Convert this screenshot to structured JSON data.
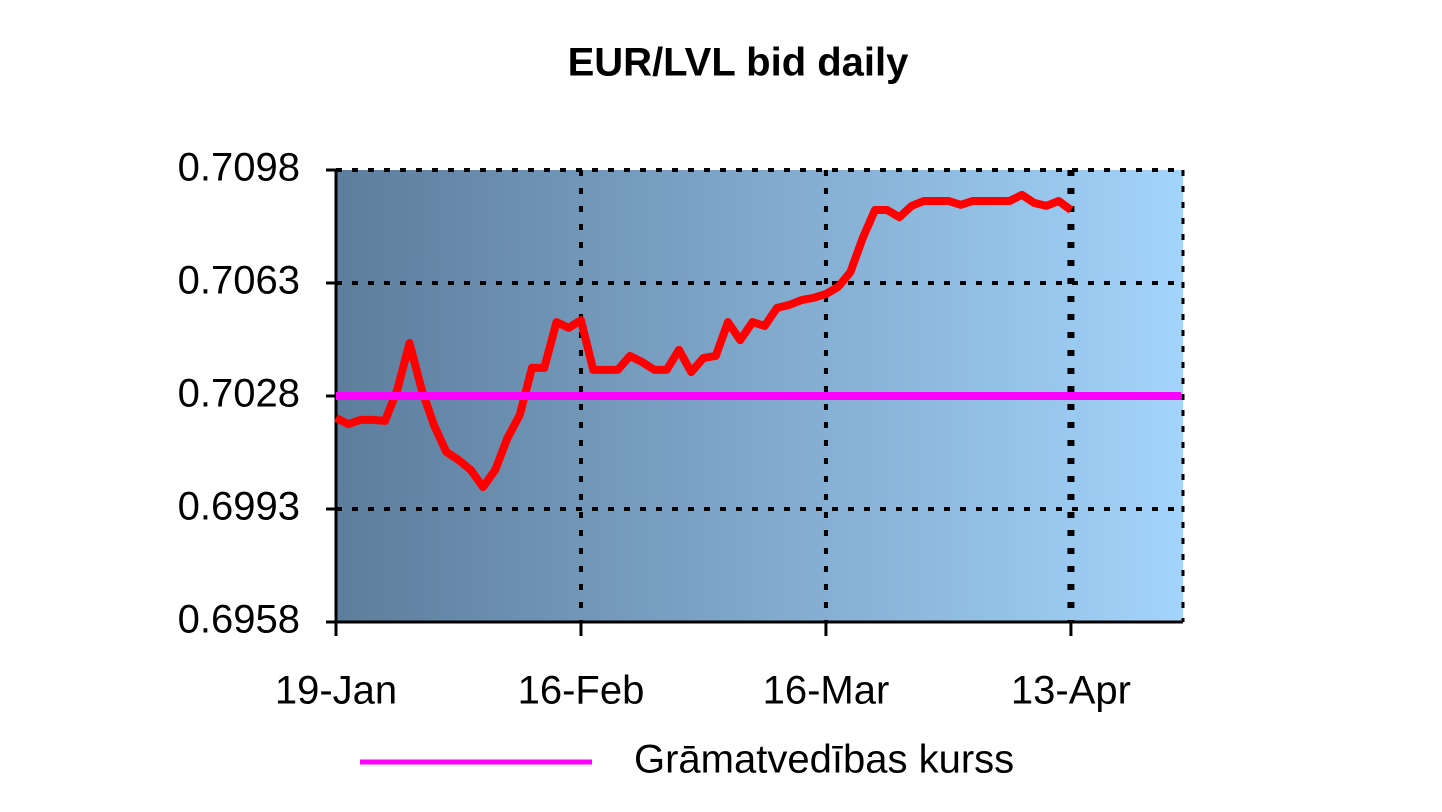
{
  "chart_data": {
    "type": "line",
    "title": "EUR/LVL bid daily",
    "categories": [
      "19-Jan",
      null,
      null,
      null,
      null,
      null,
      null,
      null,
      null,
      null,
      null,
      null,
      null,
      null,
      null,
      null,
      null,
      null,
      null,
      null,
      "16-Feb",
      null,
      null,
      null,
      null,
      null,
      null,
      null,
      null,
      null,
      null,
      null,
      null,
      null,
      null,
      null,
      null,
      null,
      null,
      null,
      "16-Mar",
      null,
      null,
      null,
      null,
      null,
      null,
      null,
      null,
      null,
      null,
      null,
      null,
      null,
      null,
      null,
      null,
      null,
      null,
      null,
      "13-Apr",
      null,
      null,
      null,
      null,
      null,
      null,
      null,
      null,
      null
    ],
    "series": [
      {
        "color": "#ff0000",
        "values": [
          0.70212,
          0.70193,
          0.70206,
          0.70206,
          0.70203,
          0.70299,
          0.70444,
          0.70299,
          0.7019,
          0.70107,
          0.70082,
          0.70051,
          0.69998,
          0.70051,
          0.7015,
          0.70221,
          0.70367,
          0.70367,
          0.70509,
          0.70491,
          0.70515,
          0.70361,
          0.70361,
          0.70361,
          0.70404,
          0.70385,
          0.70361,
          0.70361,
          0.70423,
          0.70354,
          0.70398,
          0.70404,
          0.70509,
          0.70453,
          0.70509,
          0.70497,
          0.70553,
          0.70562,
          0.70577,
          0.70584,
          0.70596,
          0.70618,
          0.70664,
          0.70769,
          0.70856,
          0.70856,
          0.70834,
          0.70869,
          0.70884,
          0.70884,
          0.70884,
          0.70872,
          0.70884,
          0.70884,
          0.70884,
          0.70884,
          0.70903,
          0.70878,
          0.70869,
          0.70884,
          0.70856,
          null,
          null,
          null,
          null,
          null,
          null,
          null,
          null,
          null
        ]
      },
      {
        "name": "Grāmatvedības kurss",
        "color": "#ff00ff",
        "values": [
          0.7028,
          0.7028,
          0.7028,
          0.7028,
          0.7028,
          0.7028,
          0.7028,
          0.7028,
          0.7028,
          0.7028,
          0.7028,
          0.7028,
          0.7028,
          0.7028,
          0.7028,
          0.7028,
          0.7028,
          0.7028,
          0.7028,
          0.7028,
          0.7028,
          0.7028,
          0.7028,
          0.7028,
          0.7028,
          0.7028,
          0.7028,
          0.7028,
          0.7028,
          0.7028,
          0.7028,
          0.7028,
          0.7028,
          0.7028,
          0.7028,
          0.7028,
          0.7028,
          0.7028,
          0.7028,
          0.7028,
          0.7028,
          0.7028,
          0.7028,
          0.7028,
          0.7028,
          0.7028,
          0.7028,
          0.7028,
          0.7028,
          0.7028,
          0.7028,
          0.7028,
          0.7028,
          0.7028,
          0.7028,
          0.7028,
          0.7028,
          0.7028,
          0.7028,
          0.7028,
          0.7028,
          0.7028,
          0.7028,
          0.7028,
          0.7028,
          0.7028,
          0.7028,
          0.7028,
          0.7028,
          0.7028
        ]
      }
    ],
    "ylim": [
      0.6958,
      0.7098
    ],
    "yticks": [
      0.6958,
      0.6993,
      0.7028,
      0.7063,
      0.7098
    ],
    "grid": true,
    "legend": "bottom"
  }
}
